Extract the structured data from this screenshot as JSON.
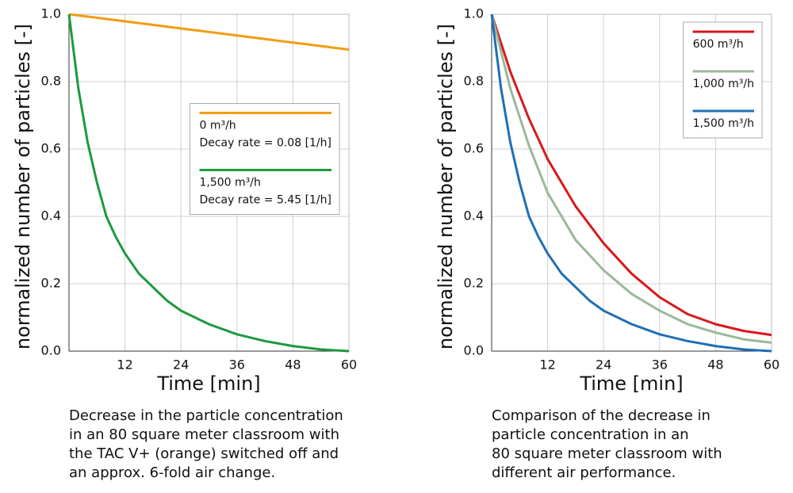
{
  "chart_data": [
    {
      "type": "line",
      "ylabel": "normalized number of particles [-]",
      "xlabel": "Time [min]",
      "xlim": [
        0,
        60
      ],
      "xticks": [
        12,
        24,
        36,
        48,
        60
      ],
      "ylim": [
        0,
        1
      ],
      "yticks": [
        {
          "value": 0,
          "label": "0.0"
        },
        0.2,
        0.4,
        0.6,
        0.8,
        {
          "value": 1,
          "label": "1.0"
        }
      ],
      "grid": true,
      "legend": "center right",
      "series": [
        {
          "name": "0 m³/h",
          "note": "Decay rate = 0.08 [1/h]",
          "color": "#f39c12",
          "x": [
            0,
            12,
            24,
            36,
            48,
            60
          ],
          "values": [
            1.0,
            0.979,
            0.958,
            0.937,
            0.916,
            0.895
          ]
        },
        {
          "name": "1,500 m³/h",
          "note": "Decay rate = 5.45 [1/h]",
          "color": "#1c9a3c",
          "x": [
            0,
            2,
            4,
            6,
            8,
            10,
            12,
            15,
            18,
            21,
            24,
            30,
            36,
            42,
            48,
            54,
            60
          ],
          "values": [
            1.0,
            0.78,
            0.62,
            0.5,
            0.4,
            0.34,
            0.29,
            0.23,
            0.19,
            0.15,
            0.12,
            0.08,
            0.05,
            0.03,
            0.015,
            0.005,
            0.0
          ]
        }
      ],
      "caption": [
        "Decrease in the particle concentration",
        "in an 80 square meter classroom with",
        "the TAC V+ (orange) switched off and",
        "an approx. 6-fold air change."
      ]
    },
    {
      "type": "line",
      "ylabel": "normalized number of particles [-]",
      "xlabel": "Time [min]",
      "xlim": [
        0,
        60
      ],
      "xticks": [
        12,
        24,
        36,
        48,
        60
      ],
      "ylim": [
        0,
        1
      ],
      "yticks": [
        {
          "value": 0,
          "label": "0.0"
        },
        0.2,
        0.4,
        0.6,
        0.8,
        {
          "value": 1,
          "label": "1.0"
        }
      ],
      "grid": true,
      "legend": "upper right",
      "series": [
        {
          "name": "600 m³/h",
          "color": "#d7191c",
          "x": [
            0,
            4,
            8,
            12,
            18,
            24,
            30,
            36,
            42,
            48,
            54,
            60
          ],
          "values": [
            1.0,
            0.83,
            0.69,
            0.57,
            0.43,
            0.32,
            0.23,
            0.16,
            0.11,
            0.08,
            0.06,
            0.048
          ]
        },
        {
          "name": "1,000 m³/h",
          "color": "#9bb89a",
          "x": [
            0,
            4,
            8,
            12,
            18,
            24,
            30,
            36,
            42,
            48,
            54,
            60
          ],
          "values": [
            1.0,
            0.78,
            0.61,
            0.47,
            0.33,
            0.24,
            0.17,
            0.12,
            0.08,
            0.055,
            0.035,
            0.025
          ]
        },
        {
          "name": "1,500 m³/h",
          "color": "#1f6fb5",
          "x": [
            0,
            2,
            4,
            6,
            8,
            10,
            12,
            15,
            18,
            21,
            24,
            30,
            36,
            42,
            48,
            54,
            60
          ],
          "values": [
            1.0,
            0.78,
            0.62,
            0.5,
            0.4,
            0.34,
            0.29,
            0.23,
            0.19,
            0.15,
            0.12,
            0.08,
            0.05,
            0.03,
            0.015,
            0.005,
            0.0
          ]
        }
      ],
      "caption": [
        "Comparison of the decrease in",
        "particle concentration in an",
        "80 square meter classroom with",
        "different air performance."
      ]
    }
  ]
}
